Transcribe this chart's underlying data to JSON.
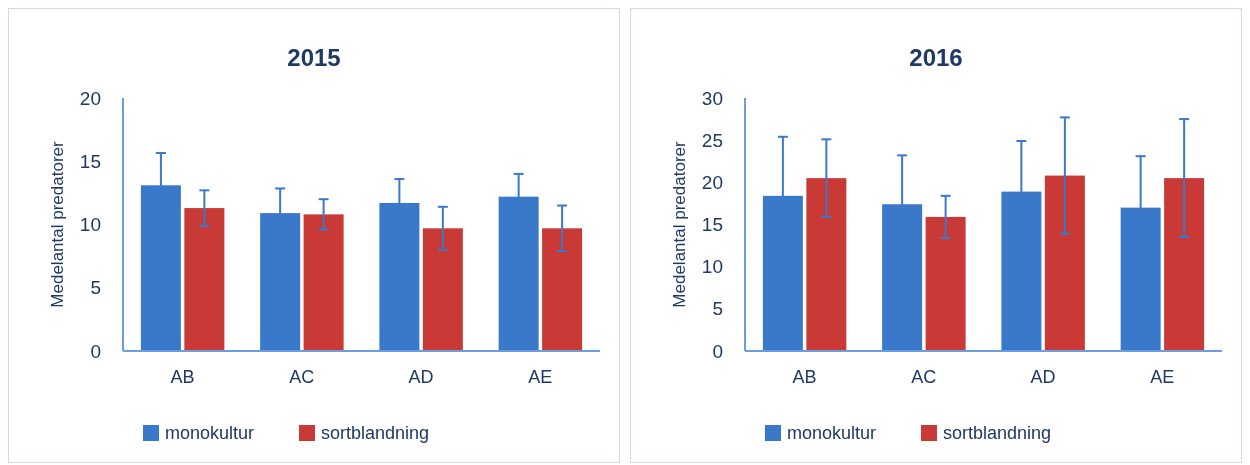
{
  "chart_data": [
    {
      "type": "bar",
      "title": "2015",
      "ylabel": "Medelantal predatorer",
      "categories": [
        "AB",
        "AC",
        "AD",
        "AE"
      ],
      "ylim": [
        0,
        20
      ],
      "yticks": [
        0,
        5,
        10,
        15,
        20
      ],
      "legend": "bottom",
      "series": [
        {
          "name": "monokultur",
          "color": "#3a78c9",
          "values": [
            13.1,
            10.9,
            11.7,
            12.2
          ],
          "errors": [
            2.55,
            1.95,
            1.9,
            1.8
          ]
        },
        {
          "name": "sortblandning",
          "color": "#c93a36",
          "values": [
            11.3,
            10.8,
            9.7,
            9.7
          ],
          "errors": [
            1.4,
            1.2,
            1.7,
            1.8
          ]
        }
      ]
    },
    {
      "type": "bar",
      "title": "2016",
      "ylabel": "Medelantal predatorer",
      "categories": [
        "AB",
        "AC",
        "AD",
        "AE"
      ],
      "ylim": [
        0,
        30
      ],
      "yticks": [
        0,
        5,
        10,
        15,
        20,
        25,
        30
      ],
      "legend": "bottom",
      "series": [
        {
          "name": "monokultur",
          "color": "#3a78c9",
          "values": [
            18.4,
            17.4,
            18.9,
            17.0
          ],
          "errors": [
            7,
            5.8,
            6,
            6.1
          ]
        },
        {
          "name": "sortblandning",
          "color": "#c93a36",
          "values": [
            20.5,
            15.9,
            20.8,
            20.5
          ],
          "errors": [
            4.6,
            2.5,
            6.9,
            7
          ]
        }
      ]
    }
  ]
}
